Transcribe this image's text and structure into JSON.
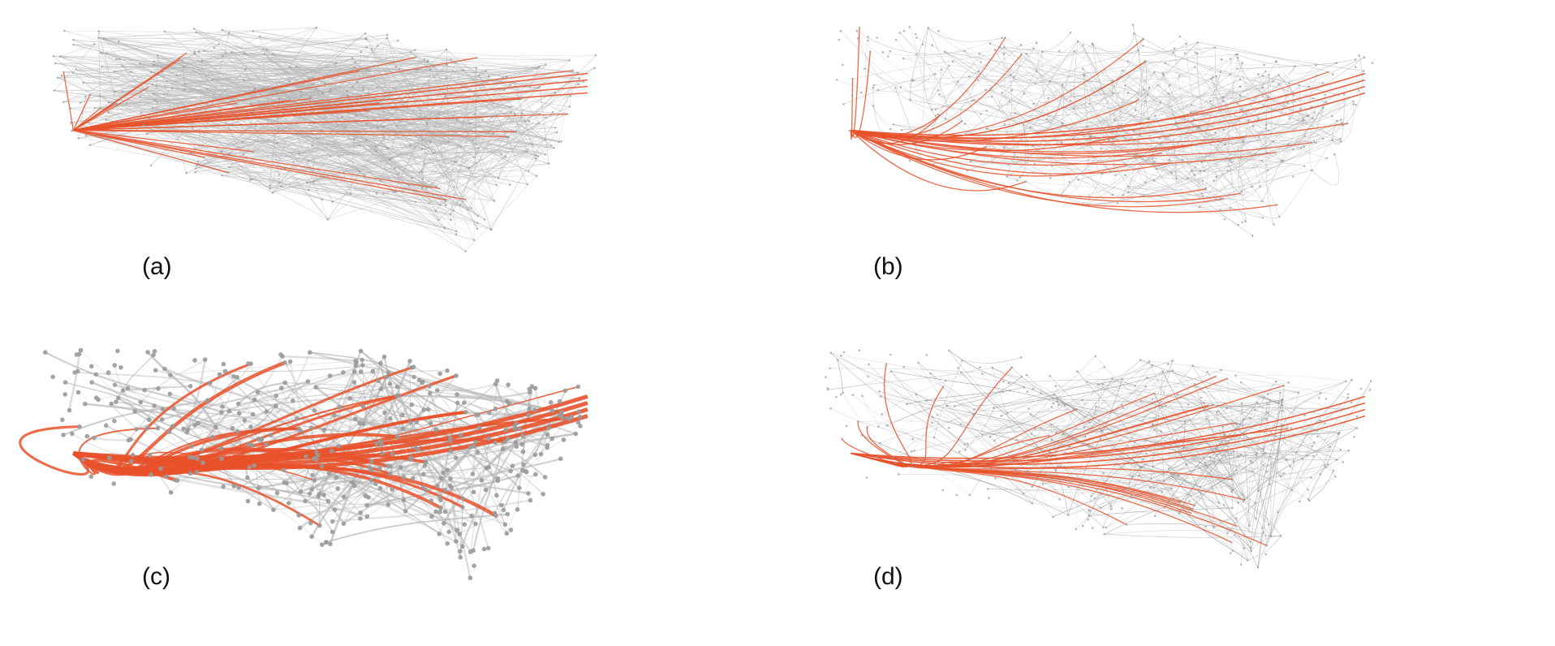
{
  "figure": {
    "panels": [
      {
        "id": "a",
        "label": "(a)",
        "style": "straight"
      },
      {
        "id": "b",
        "label": "(b)",
        "style": "curved"
      },
      {
        "id": "c",
        "label": "(c)",
        "style": "bundled"
      },
      {
        "id": "d",
        "label": "(d)",
        "style": "hierarchical"
      }
    ],
    "colors": {
      "background": "#ffffff",
      "edge_gray": "#b4b4b4",
      "edge_dark": "#8c8c8c",
      "highlight": "#e8512a",
      "node": "#9a9a9a"
    }
  }
}
